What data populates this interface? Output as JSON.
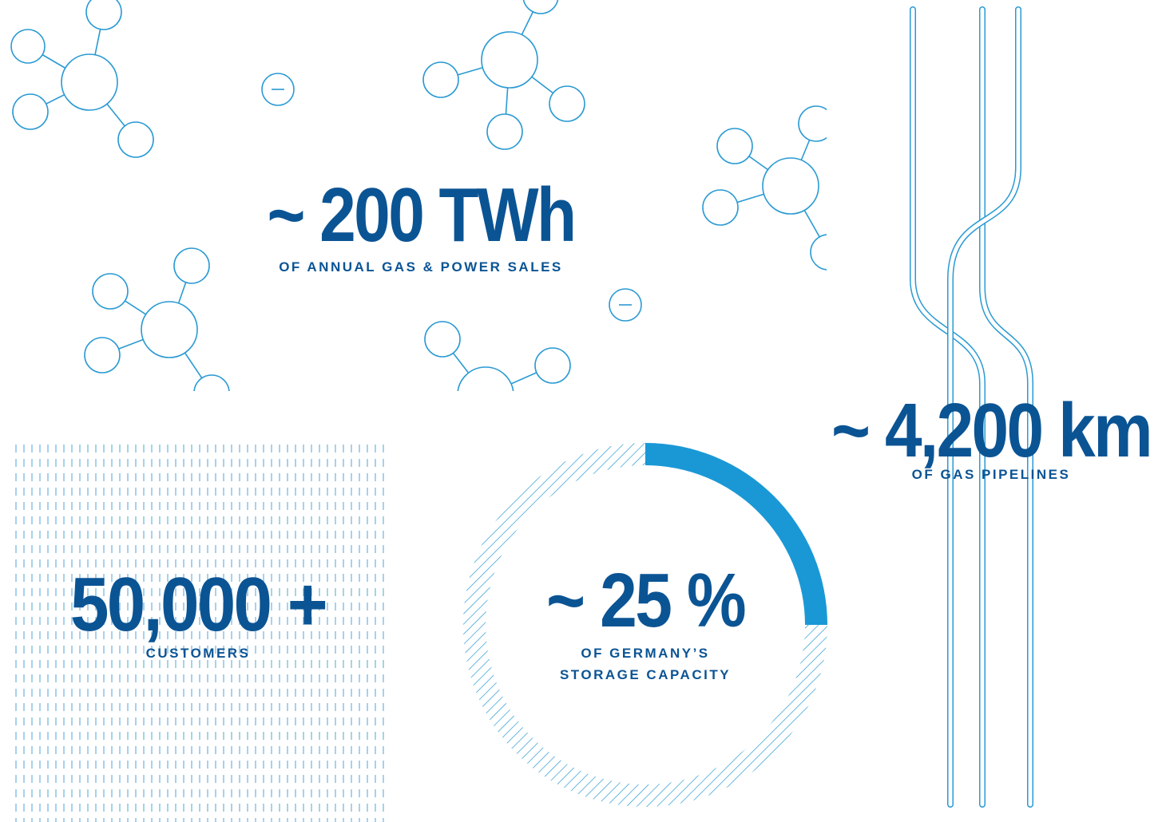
{
  "stats": [
    {
      "value": "~ 200 TWh",
      "label": [
        "OF ANNUAL GAS & POWER SALES"
      ]
    },
    {
      "value": "~ 4,200 km",
      "label": [
        "OF GAS PIPELINES"
      ]
    },
    {
      "value": "50,000 +",
      "label": [
        "CUSTOMERS"
      ]
    },
    {
      "value": "~ 25 %",
      "label": [
        "OF GERMANY’S",
        "STORAGE CAPACITY"
      ]
    }
  ]
}
